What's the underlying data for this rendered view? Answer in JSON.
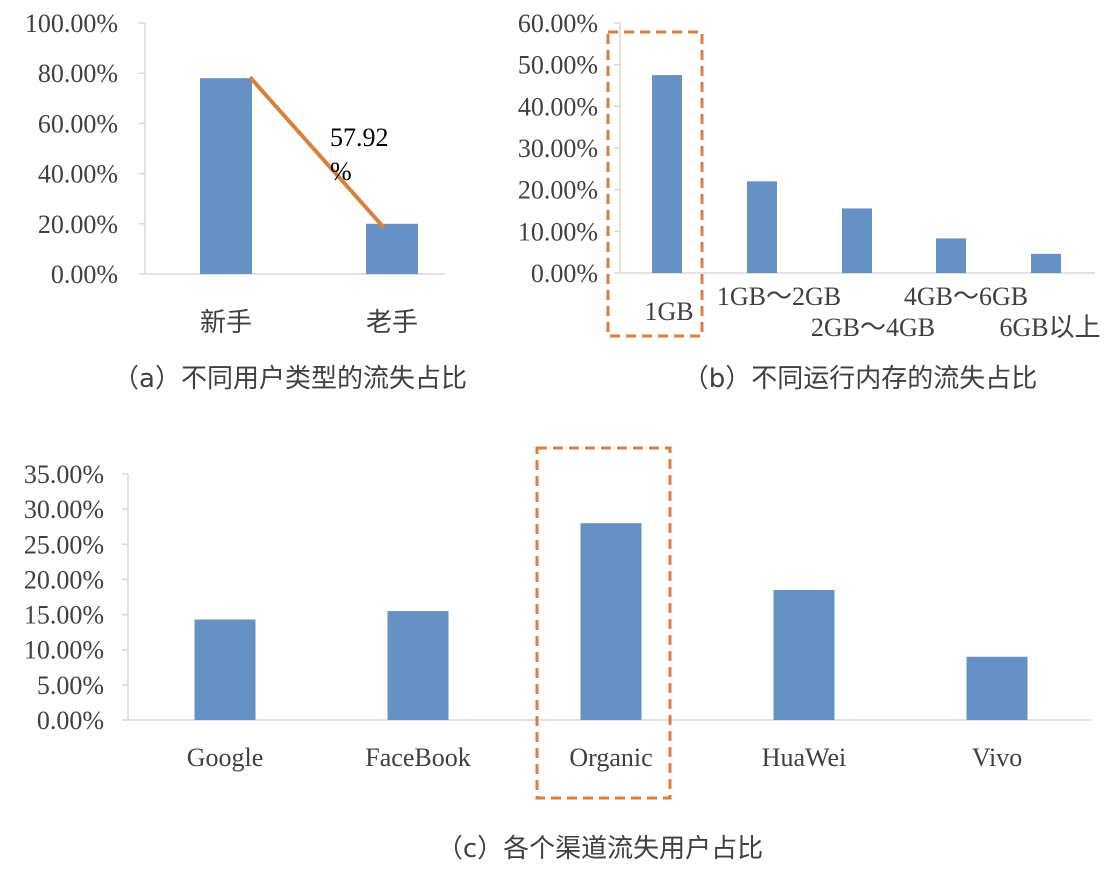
{
  "colors": {
    "bar": "#6591C5",
    "line": "#D9803F",
    "box": "#D9803F",
    "axis": "#D9D9D9",
    "text": "#404040"
  },
  "chart_data": [
    {
      "type": "bar",
      "categories": [
        "新手",
        "老手"
      ],
      "values": [
        78,
        20
      ],
      "ylim": [
        0,
        100
      ],
      "yticks": [
        "0.00%",
        "20.00%",
        "40.00%",
        "60.00%",
        "80.00%",
        "100.00%"
      ],
      "caption": "（a）不同用户类型的流失占比",
      "annotation": {
        "line": "57.92",
        "unit": "%"
      },
      "grid": false
    },
    {
      "type": "bar",
      "categories": [
        "1GB",
        "1GB～2GB",
        "2GB～4GB",
        "4GB～6GB",
        "6GB以上"
      ],
      "values": [
        47.5,
        22,
        15.5,
        8.3,
        4.6
      ],
      "ylim": [
        0,
        60
      ],
      "yticks": [
        "0.00%",
        "10.00%",
        "20.00%",
        "30.00%",
        "40.00%",
        "50.00%",
        "60.00%"
      ],
      "caption": "（b）不同运行内存的流失占比",
      "highlight": "1GB",
      "grid": false
    },
    {
      "type": "bar",
      "categories": [
        "Google",
        "FaceBook",
        "Organic",
        "HuaWei",
        "Vivo"
      ],
      "values": [
        14.3,
        15.5,
        28,
        18.5,
        9
      ],
      "ylim": [
        0,
        35
      ],
      "yticks": [
        "0.00%",
        "5.00%",
        "10.00%",
        "15.00%",
        "20.00%",
        "25.00%",
        "30.00%",
        "35.00%"
      ],
      "caption": "（c）各个渠道流失用户占比",
      "highlight": "Organic",
      "grid": false
    }
  ]
}
